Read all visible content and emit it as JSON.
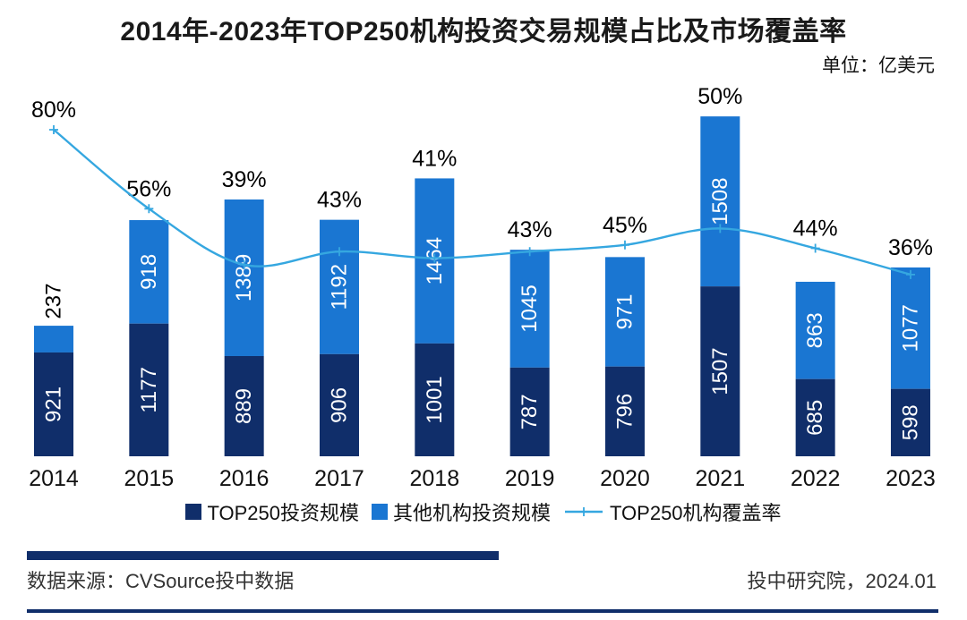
{
  "title": "2014年-2023年TOP250机构投资交易规模占比及市场覆盖率",
  "unit_label": "单位：亿美元",
  "footer": {
    "source": "数据来源：CVSource投中数据",
    "publisher": "投中研究院，2024.01"
  },
  "colors": {
    "navy": "#102e6a",
    "blue": "#1a76d2",
    "line": "#35a7e0"
  },
  "chart_data": {
    "type": "bar",
    "subtype": "stacked-bar-with-line",
    "title": "2014年-2023年TOP250机构投资交易规模占比及市场覆盖率",
    "unit": "亿美元",
    "categories": [
      "2014",
      "2015",
      "2016",
      "2017",
      "2018",
      "2019",
      "2020",
      "2021",
      "2022",
      "2023"
    ],
    "series": [
      {
        "name": "TOP250投资规模",
        "type": "bar",
        "stack": "total",
        "color": "#102e6a",
        "values": [
          921,
          1177,
          889,
          906,
          1001,
          787,
          796,
          1507,
          685,
          598
        ]
      },
      {
        "name": "其他机构投资规模",
        "type": "bar",
        "stack": "total",
        "color": "#1a76d2",
        "values": [
          237,
          918,
          1389,
          1192,
          1464,
          1045,
          971,
          1508,
          863,
          1077
        ]
      },
      {
        "name": "TOP250机构覆盖率",
        "type": "line",
        "axis": "secondary",
        "unit": "%",
        "color": "#35a7e0",
        "values": [
          80,
          56,
          39,
          43,
          41,
          43,
          45,
          50,
          44,
          36
        ]
      }
    ],
    "value_labels": "inside-vertical",
    "legend_position": "bottom",
    "gridlines": false,
    "y_axis_visible": false
  }
}
